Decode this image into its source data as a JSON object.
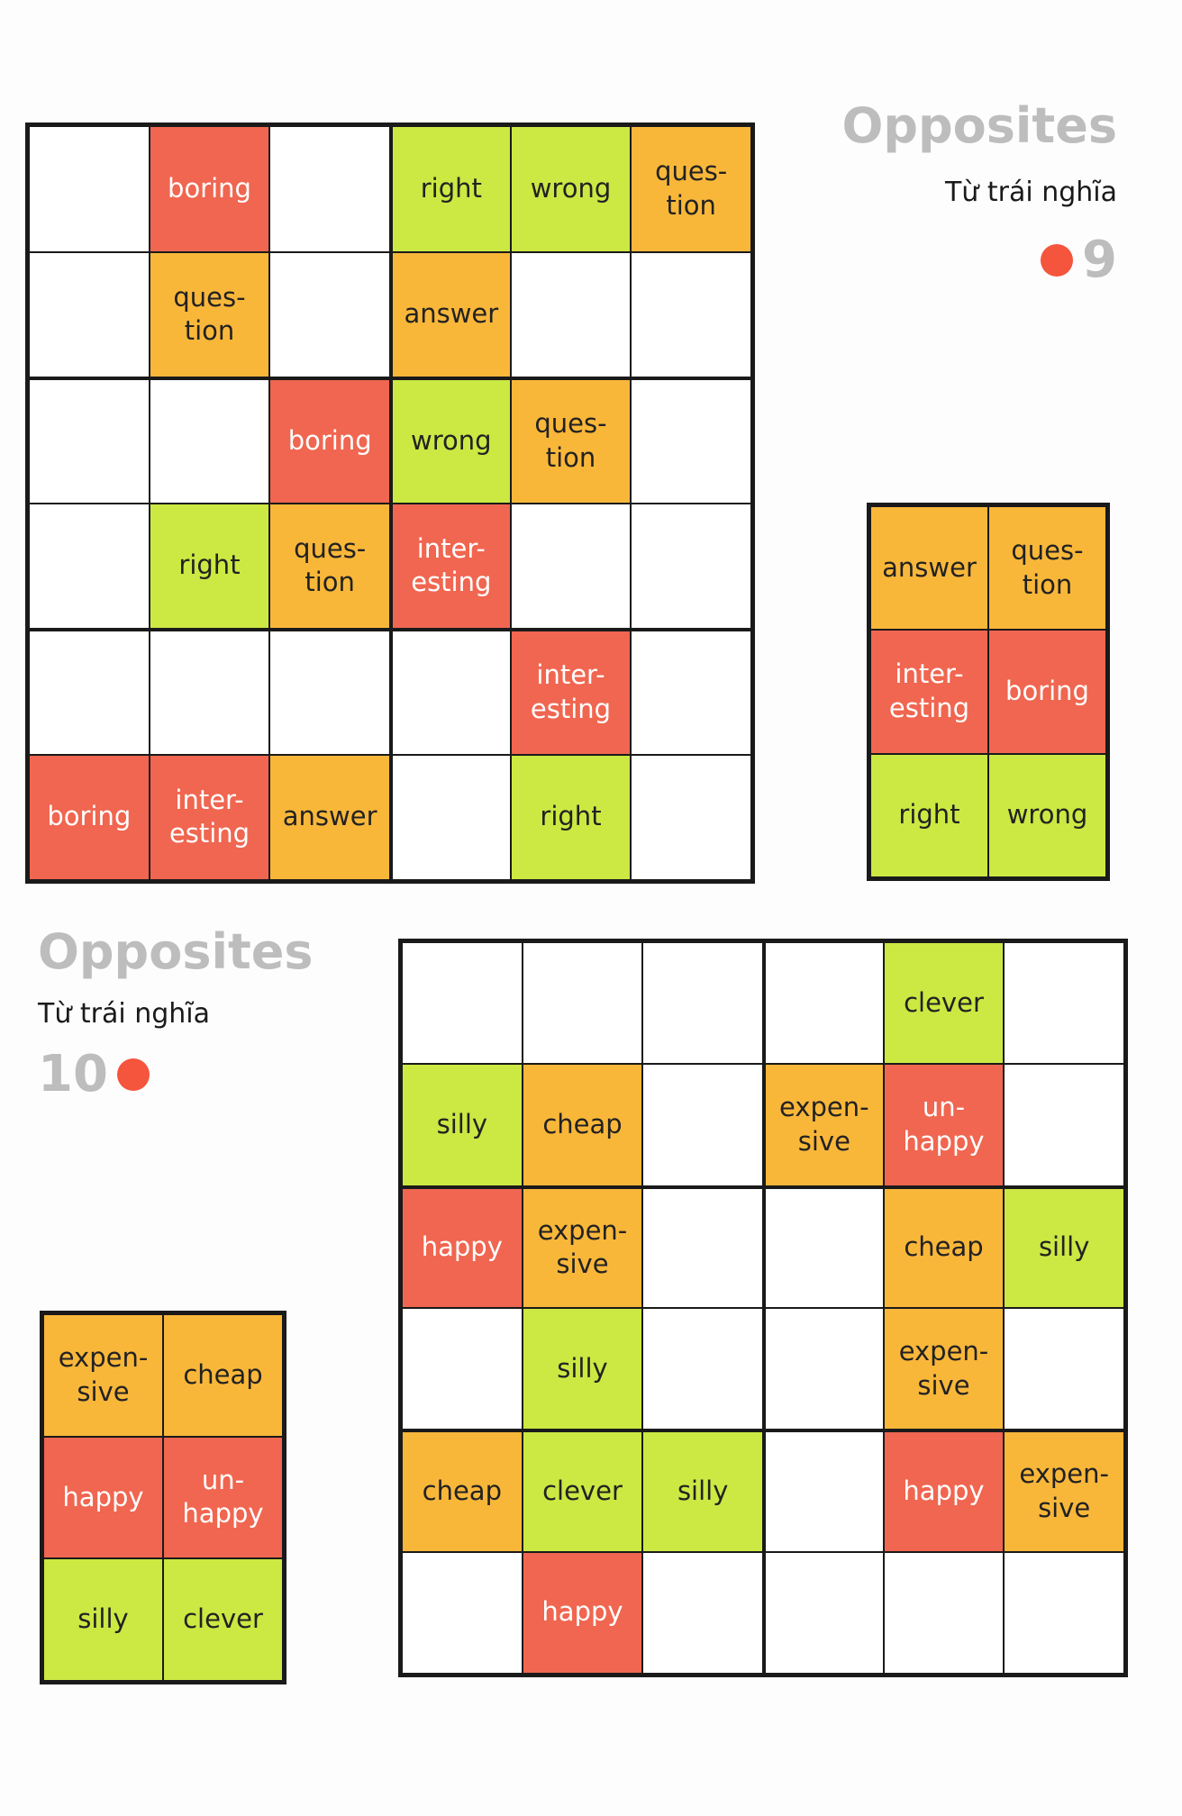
{
  "puzzle9": {
    "title": "Opposites",
    "subtitle": "Từ trái nghĩa",
    "number": "9",
    "accent_color": "#f4553c",
    "grid": [
      [
        "",
        "boring",
        "",
        "right",
        "wrong",
        "ques-\ntion"
      ],
      [
        "",
        "ques-\ntion",
        "",
        "answer",
        "",
        ""
      ],
      [
        "",
        "",
        "boring",
        "wrong",
        "ques-\ntion",
        ""
      ],
      [
        "",
        "right",
        "ques-\ntion",
        "inter-\nesting",
        "",
        ""
      ],
      [
        "",
        "",
        "",
        "",
        "inter-\nesting",
        ""
      ],
      [
        "boring",
        "inter-\nesting",
        "answer",
        "",
        "right",
        ""
      ]
    ],
    "colors": [
      [
        "",
        "red",
        "",
        "green",
        "green",
        "orange"
      ],
      [
        "",
        "orange",
        "",
        "orange",
        "",
        ""
      ],
      [
        "",
        "",
        "red",
        "green",
        "orange",
        ""
      ],
      [
        "",
        "green",
        "orange",
        "red",
        "",
        ""
      ],
      [
        "",
        "",
        "",
        "",
        "red",
        ""
      ],
      [
        "red",
        "red",
        "orange",
        "",
        "green",
        ""
      ]
    ],
    "legend": [
      [
        "answer",
        "ques-\ntion"
      ],
      [
        "inter-\nesting",
        "boring"
      ],
      [
        "right",
        "wrong"
      ]
    ],
    "legend_colors": [
      [
        "orange",
        "orange"
      ],
      [
        "red",
        "red"
      ],
      [
        "green",
        "green"
      ]
    ]
  },
  "puzzle10": {
    "title": "Opposites",
    "subtitle": "Từ trái nghĩa",
    "number": "10",
    "accent_color": "#f4553c",
    "grid": [
      [
        "",
        "",
        "",
        "",
        "clever",
        ""
      ],
      [
        "silly",
        "cheap",
        "",
        "expen-\nsive",
        "un-\nhappy",
        ""
      ],
      [
        "happy",
        "expen-\nsive",
        "",
        "",
        "cheap",
        "silly"
      ],
      [
        "",
        "silly",
        "",
        "",
        "expen-\nsive",
        ""
      ],
      [
        "cheap",
        "clever",
        "silly",
        "",
        "happy",
        "expen-\nsive"
      ],
      [
        "",
        "happy",
        "",
        "",
        "",
        ""
      ]
    ],
    "colors": [
      [
        "",
        "",
        "",
        "",
        "green",
        ""
      ],
      [
        "green",
        "orange",
        "",
        "orange",
        "red",
        ""
      ],
      [
        "red",
        "orange",
        "",
        "",
        "orange",
        "green"
      ],
      [
        "",
        "green",
        "",
        "",
        "orange",
        ""
      ],
      [
        "orange",
        "green",
        "green",
        "",
        "red",
        "orange"
      ],
      [
        "",
        "red",
        "",
        "",
        "",
        ""
      ]
    ],
    "legend": [
      [
        "expen-\nsive",
        "cheap"
      ],
      [
        "happy",
        "un-\nhappy"
      ],
      [
        "silly",
        "clever"
      ]
    ],
    "legend_colors": [
      [
        "orange",
        "orange"
      ],
      [
        "red",
        "red"
      ],
      [
        "green",
        "green"
      ]
    ]
  }
}
